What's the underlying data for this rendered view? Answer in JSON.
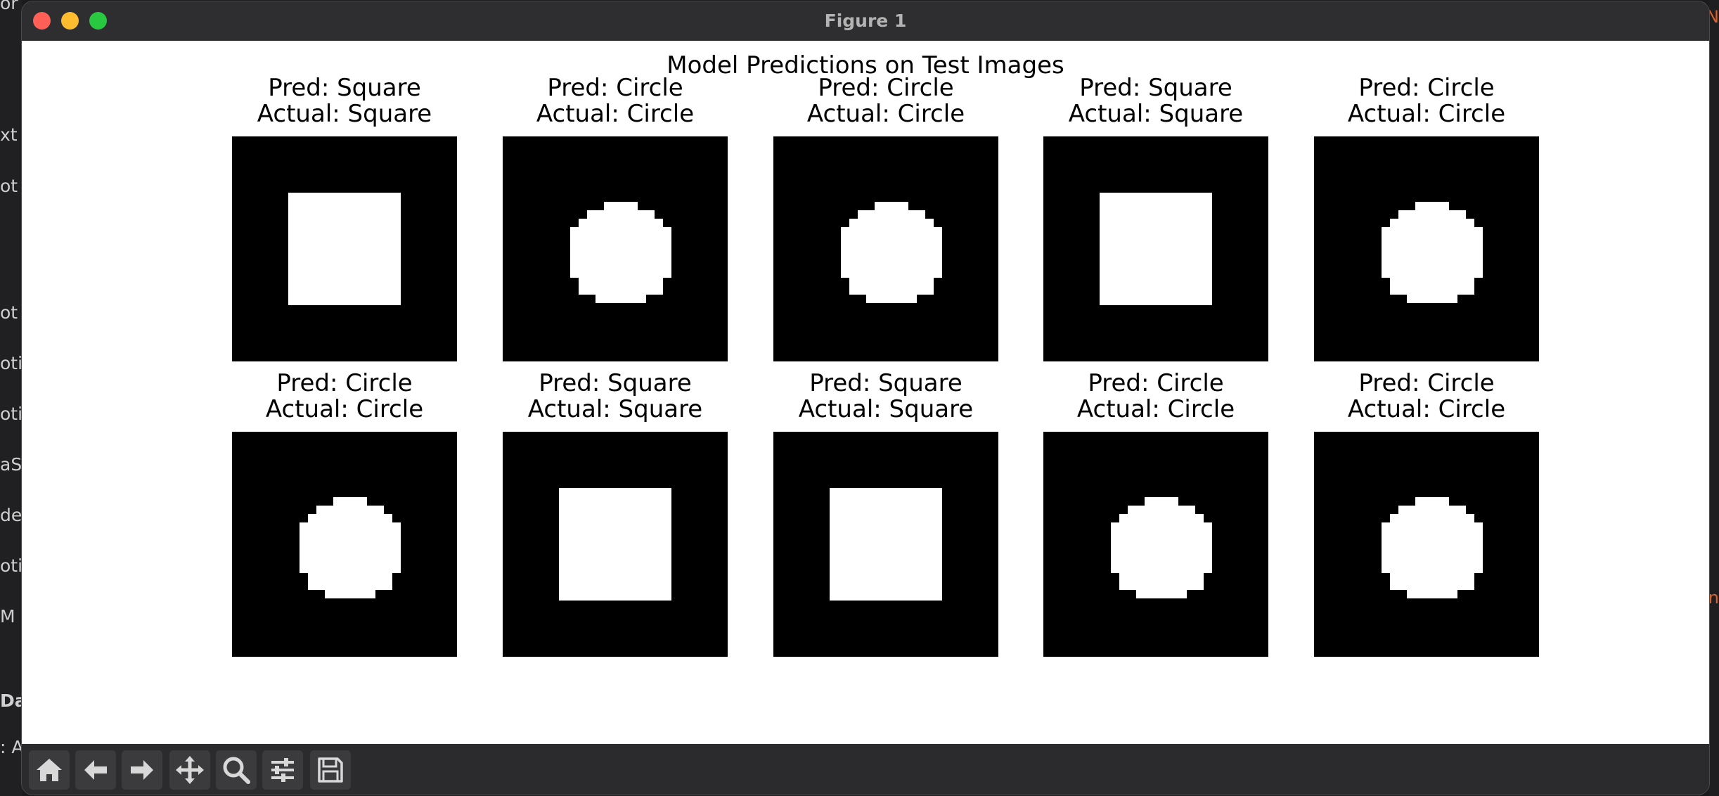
{
  "window": {
    "title": "Figure 1"
  },
  "figure": {
    "suptitle": "Model Predictions on Test Images",
    "panels": [
      {
        "pred": "Pred: Square",
        "actual": "Actual: Square",
        "shape": "square"
      },
      {
        "pred": "Pred: Circle",
        "actual": "Actual: Circle",
        "shape": "circle"
      },
      {
        "pred": "Pred: Circle",
        "actual": "Actual: Circle",
        "shape": "circle"
      },
      {
        "pred": "Pred: Square",
        "actual": "Actual: Square",
        "shape": "square"
      },
      {
        "pred": "Pred: Circle",
        "actual": "Actual: Circle",
        "shape": "circle"
      },
      {
        "pred": "Pred: Circle",
        "actual": "Actual: Circle",
        "shape": "circle"
      },
      {
        "pred": "Pred: Square",
        "actual": "Actual: Square",
        "shape": "square"
      },
      {
        "pred": "Pred: Square",
        "actual": "Actual: Square",
        "shape": "square"
      },
      {
        "pred": "Pred: Circle",
        "actual": "Actual: Circle",
        "shape": "circle"
      },
      {
        "pred": "Pred: Circle",
        "actual": "Actual: Circle",
        "shape": "circle"
      }
    ]
  },
  "toolbar": {
    "buttons": [
      {
        "icon": "home-icon"
      },
      {
        "icon": "back-arrow-icon"
      },
      {
        "icon": "forward-arrow-icon"
      },
      {
        "icon": "pan-icon"
      },
      {
        "icon": "zoom-icon"
      },
      {
        "icon": "configure-subplots-icon"
      },
      {
        "icon": "save-icon"
      }
    ]
  },
  "background_fragments": [
    "or",
    "xt",
    "ot",
    "ot",
    "otic",
    "otic",
    "aS",
    "de",
    "otic",
    "M S",
    "Da",
    ": A"
  ],
  "background_right_fragments": [
    "N",
    "n"
  ],
  "colors": {
    "traffic_red": "#fe5f57",
    "traffic_yellow": "#febc2e",
    "traffic_green": "#28c840",
    "toolbar_bg": "#2b2b2d",
    "image_bg": "#000000",
    "shape_fg": "#ffffff"
  }
}
